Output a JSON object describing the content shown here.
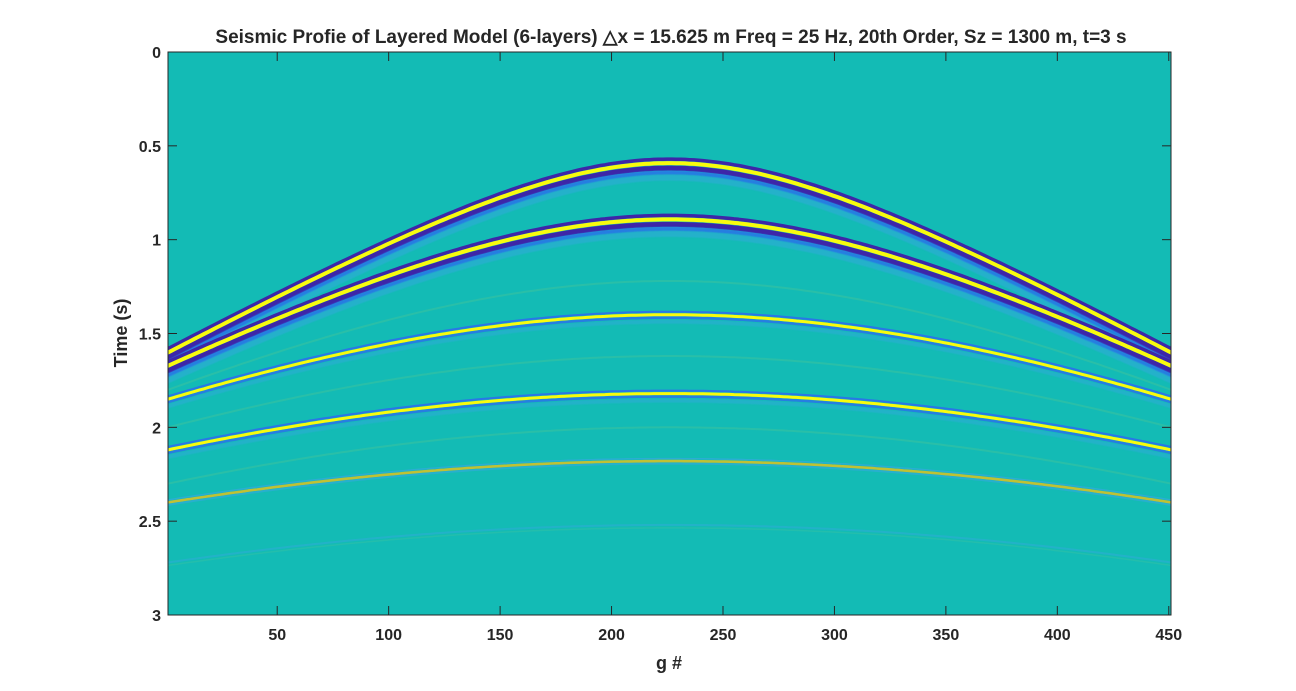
{
  "chart_data": {
    "type": "heatmap",
    "title": "Seismic Profie of Layered Model (6-layers) △x = 15.625 m Freq = 25 Hz, 20th Order, Sz = 1300 m, t=3 s",
    "xlabel": "g #",
    "ylabel": "Time (s)",
    "xlim": [
      1,
      451
    ],
    "ylim": [
      0,
      3
    ],
    "y_reversed": true,
    "grid": false,
    "x_ticks": [
      50,
      100,
      150,
      200,
      250,
      300,
      350,
      400,
      450
    ],
    "x_tick_labels": [
      "50",
      "100",
      "150",
      "200",
      "250",
      "300",
      "350",
      "400",
      "450"
    ],
    "y_ticks": [
      0,
      0.5,
      1,
      1.5,
      2,
      2.5,
      3
    ],
    "y_tick_labels": [
      "0",
      "0.5",
      "1",
      "1.5",
      "2",
      "2.5",
      "3"
    ],
    "colormap": "parula",
    "colors": {
      "background": "#13bbb5",
      "strong_positive": "#f9fb0e",
      "weak_positive": "#c8c12e",
      "strong_negative": "#3d26a8",
      "mid_negative": "#2c6fec",
      "weak_negative": "#35a8e0",
      "ghost": "#2ec0a6"
    },
    "source_trace": 226,
    "reflections": [
      {
        "apex_trace": 226,
        "apex_time_s": 0.6,
        "edge_time_s": 1.61,
        "strength": "strong"
      },
      {
        "apex_trace": 226,
        "apex_time_s": 0.9,
        "edge_time_s": 1.68,
        "strength": "strong"
      },
      {
        "apex_trace": 226,
        "apex_time_s": 1.4,
        "edge_time_s": 1.85,
        "strength": "medium"
      },
      {
        "apex_trace": 226,
        "apex_time_s": 1.82,
        "edge_time_s": 2.12,
        "strength": "medium"
      },
      {
        "apex_trace": 226,
        "apex_time_s": 2.18,
        "edge_time_s": 2.4,
        "strength": "weak"
      },
      {
        "apex_trace": 226,
        "apex_time_s": 2.52,
        "edge_time_s": 2.72,
        "strength": "faint"
      }
    ],
    "multiples": [
      {
        "apex_trace": 226,
        "apex_time_s": 1.22,
        "edge_time_s": 1.8
      },
      {
        "apex_trace": 226,
        "apex_time_s": 1.62,
        "edge_time_s": 2.0
      },
      {
        "apex_trace": 226,
        "apex_time_s": 2.0,
        "edge_time_s": 2.3
      }
    ]
  }
}
